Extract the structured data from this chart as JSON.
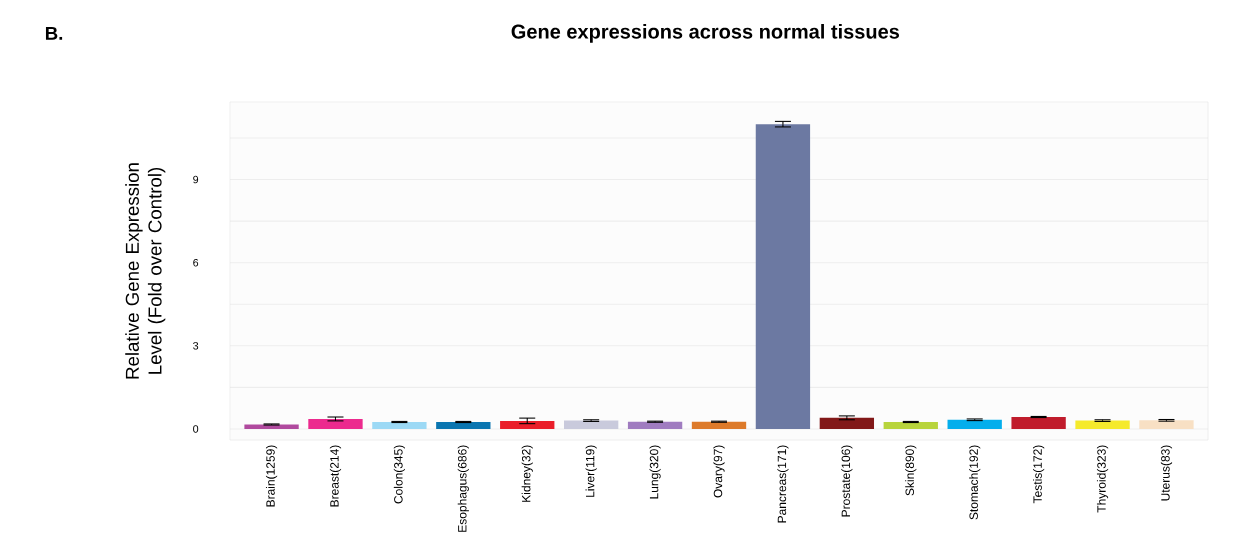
{
  "chart_data": {
    "type": "bar",
    "title": "Gene expressions across normal tissues",
    "ylabel": "Relative Gene Expression Level (Fold over Control)",
    "annotations": [
      "B."
    ],
    "categories": [
      "Brain(1259)",
      "Breast(214)",
      "Colon(345)",
      "Esophagus(686)",
      "Kidney(32)",
      "Liver(119)",
      "Lung(320)",
      "Ovary(97)",
      "Pancreas(171)",
      "Prostate(106)",
      "Skin(890)",
      "Stomach(192)",
      "Testis(172)",
      "Thyroid(323)",
      "Uterus(83)"
    ],
    "values": [
      0.16,
      0.36,
      0.25,
      0.25,
      0.29,
      0.3,
      0.26,
      0.26,
      11.0,
      0.4,
      0.25,
      0.33,
      0.43,
      0.3,
      0.31
    ],
    "errors": [
      0.02,
      0.07,
      0.02,
      0.02,
      0.1,
      0.03,
      0.02,
      0.02,
      0.1,
      0.07,
      0.02,
      0.03,
      0.02,
      0.03,
      0.03
    ],
    "colors": [
      "#b04a9e",
      "#ec2a8e",
      "#9cd9f5",
      "#0a75b0",
      "#ea1e2a",
      "#c9cadc",
      "#a07cc0",
      "#dd7a2a",
      "#6c79a2",
      "#821818",
      "#b8d43c",
      "#04aeec",
      "#c01c2c",
      "#f5ea2c",
      "#f8e0c4"
    ],
    "ylim": [
      -0.4,
      11.8
    ],
    "yticks": [
      0,
      {
        "value": 1.5,
        "label": null
      },
      3,
      {
        "value": 4.5,
        "label": null
      },
      6,
      {
        "value": 7.5,
        "label": null
      },
      9,
      {
        "value": 10.5,
        "label": null
      }
    ],
    "grid": "y"
  }
}
